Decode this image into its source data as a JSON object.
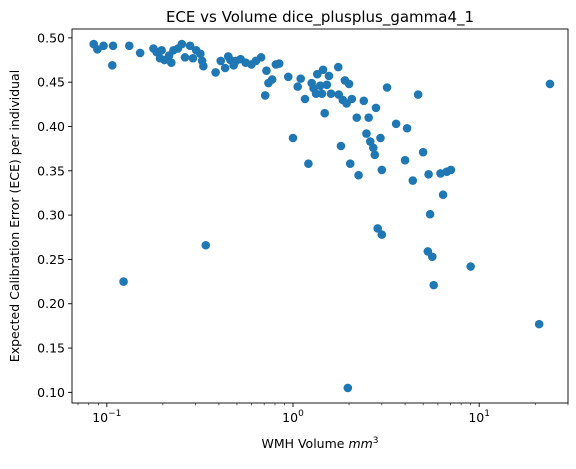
{
  "chart_data": {
    "type": "scatter",
    "title": "ECE vs Volume dice_plusplus_gamma4_1",
    "xlabel": "WMH Volume mm³",
    "xlabel_parts": {
      "text": "WMH Volume ",
      "italic": "mm",
      "sup": "3"
    },
    "ylabel": "Expected Calibration Error (ECE) per individual",
    "xscale": "log",
    "xlim": [
      0.065,
      30
    ],
    "ylim": [
      0.088,
      0.51
    ],
    "grid": false,
    "marker_color": "#1f77b4",
    "x_ticks": [
      {
        "value": 0.1,
        "base": "10",
        "exp": "−1"
      },
      {
        "value": 1,
        "base": "10",
        "exp": "0"
      },
      {
        "value": 10,
        "base": "10",
        "exp": "1"
      }
    ],
    "y_ticks": [
      {
        "value": 0.1,
        "label": "0.10"
      },
      {
        "value": 0.15,
        "label": "0.15"
      },
      {
        "value": 0.2,
        "label": "0.20"
      },
      {
        "value": 0.25,
        "label": "0.25"
      },
      {
        "value": 0.3,
        "label": "0.30"
      },
      {
        "value": 0.35,
        "label": "0.35"
      },
      {
        "value": 0.4,
        "label": "0.40"
      },
      {
        "value": 0.45,
        "label": "0.45"
      },
      {
        "value": 0.5,
        "label": "0.50"
      }
    ],
    "points": [
      {
        "x": 0.085,
        "y": 0.493
      },
      {
        "x": 0.089,
        "y": 0.487
      },
      {
        "x": 0.096,
        "y": 0.491
      },
      {
        "x": 0.108,
        "y": 0.491
      },
      {
        "x": 0.107,
        "y": 0.469
      },
      {
        "x": 0.123,
        "y": 0.225
      },
      {
        "x": 0.132,
        "y": 0.491
      },
      {
        "x": 0.151,
        "y": 0.483
      },
      {
        "x": 0.178,
        "y": 0.488
      },
      {
        "x": 0.185,
        "y": 0.484
      },
      {
        "x": 0.193,
        "y": 0.477
      },
      {
        "x": 0.197,
        "y": 0.486
      },
      {
        "x": 0.204,
        "y": 0.475
      },
      {
        "x": 0.216,
        "y": 0.48
      },
      {
        "x": 0.222,
        "y": 0.472
      },
      {
        "x": 0.228,
        "y": 0.486
      },
      {
        "x": 0.241,
        "y": 0.488
      },
      {
        "x": 0.253,
        "y": 0.493
      },
      {
        "x": 0.263,
        "y": 0.478
      },
      {
        "x": 0.28,
        "y": 0.491
      },
      {
        "x": 0.29,
        "y": 0.477
      },
      {
        "x": 0.302,
        "y": 0.486
      },
      {
        "x": 0.318,
        "y": 0.482
      },
      {
        "x": 0.325,
        "y": 0.474
      },
      {
        "x": 0.33,
        "y": 0.468
      },
      {
        "x": 0.34,
        "y": 0.266
      },
      {
        "x": 0.384,
        "y": 0.461
      },
      {
        "x": 0.409,
        "y": 0.474
      },
      {
        "x": 0.432,
        "y": 0.466
      },
      {
        "x": 0.449,
        "y": 0.479
      },
      {
        "x": 0.461,
        "y": 0.475
      },
      {
        "x": 0.48,
        "y": 0.469
      },
      {
        "x": 0.494,
        "y": 0.474
      },
      {
        "x": 0.523,
        "y": 0.476
      },
      {
        "x": 0.557,
        "y": 0.472
      },
      {
        "x": 0.598,
        "y": 0.47
      },
      {
        "x": 0.632,
        "y": 0.474
      },
      {
        "x": 0.674,
        "y": 0.478
      },
      {
        "x": 0.709,
        "y": 0.435
      },
      {
        "x": 0.72,
        "y": 0.463
      },
      {
        "x": 0.738,
        "y": 0.449
      },
      {
        "x": 0.773,
        "y": 0.453
      },
      {
        "x": 0.809,
        "y": 0.47
      },
      {
        "x": 0.843,
        "y": 0.471
      },
      {
        "x": 0.943,
        "y": 0.456
      },
      {
        "x": 1.0,
        "y": 0.387
      },
      {
        "x": 1.06,
        "y": 0.445
      },
      {
        "x": 1.1,
        "y": 0.454
      },
      {
        "x": 1.16,
        "y": 0.431
      },
      {
        "x": 1.21,
        "y": 0.358
      },
      {
        "x": 1.26,
        "y": 0.449
      },
      {
        "x": 1.29,
        "y": 0.443
      },
      {
        "x": 1.33,
        "y": 0.437
      },
      {
        "x": 1.35,
        "y": 0.459
      },
      {
        "x": 1.4,
        "y": 0.446
      },
      {
        "x": 1.43,
        "y": 0.437
      },
      {
        "x": 1.45,
        "y": 0.464
      },
      {
        "x": 1.48,
        "y": 0.415
      },
      {
        "x": 1.52,
        "y": 0.447
      },
      {
        "x": 1.56,
        "y": 0.457
      },
      {
        "x": 1.6,
        "y": 0.437
      },
      {
        "x": 1.75,
        "y": 0.467
      },
      {
        "x": 1.76,
        "y": 0.436
      },
      {
        "x": 1.81,
        "y": 0.378
      },
      {
        "x": 1.85,
        "y": 0.43
      },
      {
        "x": 1.9,
        "y": 0.452
      },
      {
        "x": 1.94,
        "y": 0.426
      },
      {
        "x": 1.97,
        "y": 0.105
      },
      {
        "x": 2.0,
        "y": 0.448
      },
      {
        "x": 2.03,
        "y": 0.358
      },
      {
        "x": 2.07,
        "y": 0.431
      },
      {
        "x": 2.2,
        "y": 0.41
      },
      {
        "x": 2.25,
        "y": 0.345
      },
      {
        "x": 2.4,
        "y": 0.429
      },
      {
        "x": 2.48,
        "y": 0.392
      },
      {
        "x": 2.55,
        "y": 0.41
      },
      {
        "x": 2.6,
        "y": 0.383
      },
      {
        "x": 2.7,
        "y": 0.376
      },
      {
        "x": 2.75,
        "y": 0.368
      },
      {
        "x": 2.79,
        "y": 0.421
      },
      {
        "x": 2.85,
        "y": 0.285
      },
      {
        "x": 2.95,
        "y": 0.387
      },
      {
        "x": 3.0,
        "y": 0.351
      },
      {
        "x": 3.0,
        "y": 0.278
      },
      {
        "x": 3.2,
        "y": 0.444
      },
      {
        "x": 3.58,
        "y": 0.403
      },
      {
        "x": 4.0,
        "y": 0.362
      },
      {
        "x": 4.1,
        "y": 0.398
      },
      {
        "x": 4.4,
        "y": 0.339
      },
      {
        "x": 4.7,
        "y": 0.436
      },
      {
        "x": 5.0,
        "y": 0.371
      },
      {
        "x": 5.3,
        "y": 0.259
      },
      {
        "x": 5.35,
        "y": 0.346
      },
      {
        "x": 5.45,
        "y": 0.301
      },
      {
        "x": 5.6,
        "y": 0.253
      },
      {
        "x": 5.7,
        "y": 0.221
      },
      {
        "x": 6.2,
        "y": 0.347
      },
      {
        "x": 6.4,
        "y": 0.323
      },
      {
        "x": 6.7,
        "y": 0.349
      },
      {
        "x": 7.05,
        "y": 0.351
      },
      {
        "x": 9.0,
        "y": 0.242
      },
      {
        "x": 21.0,
        "y": 0.177
      },
      {
        "x": 24.0,
        "y": 0.448
      }
    ]
  }
}
